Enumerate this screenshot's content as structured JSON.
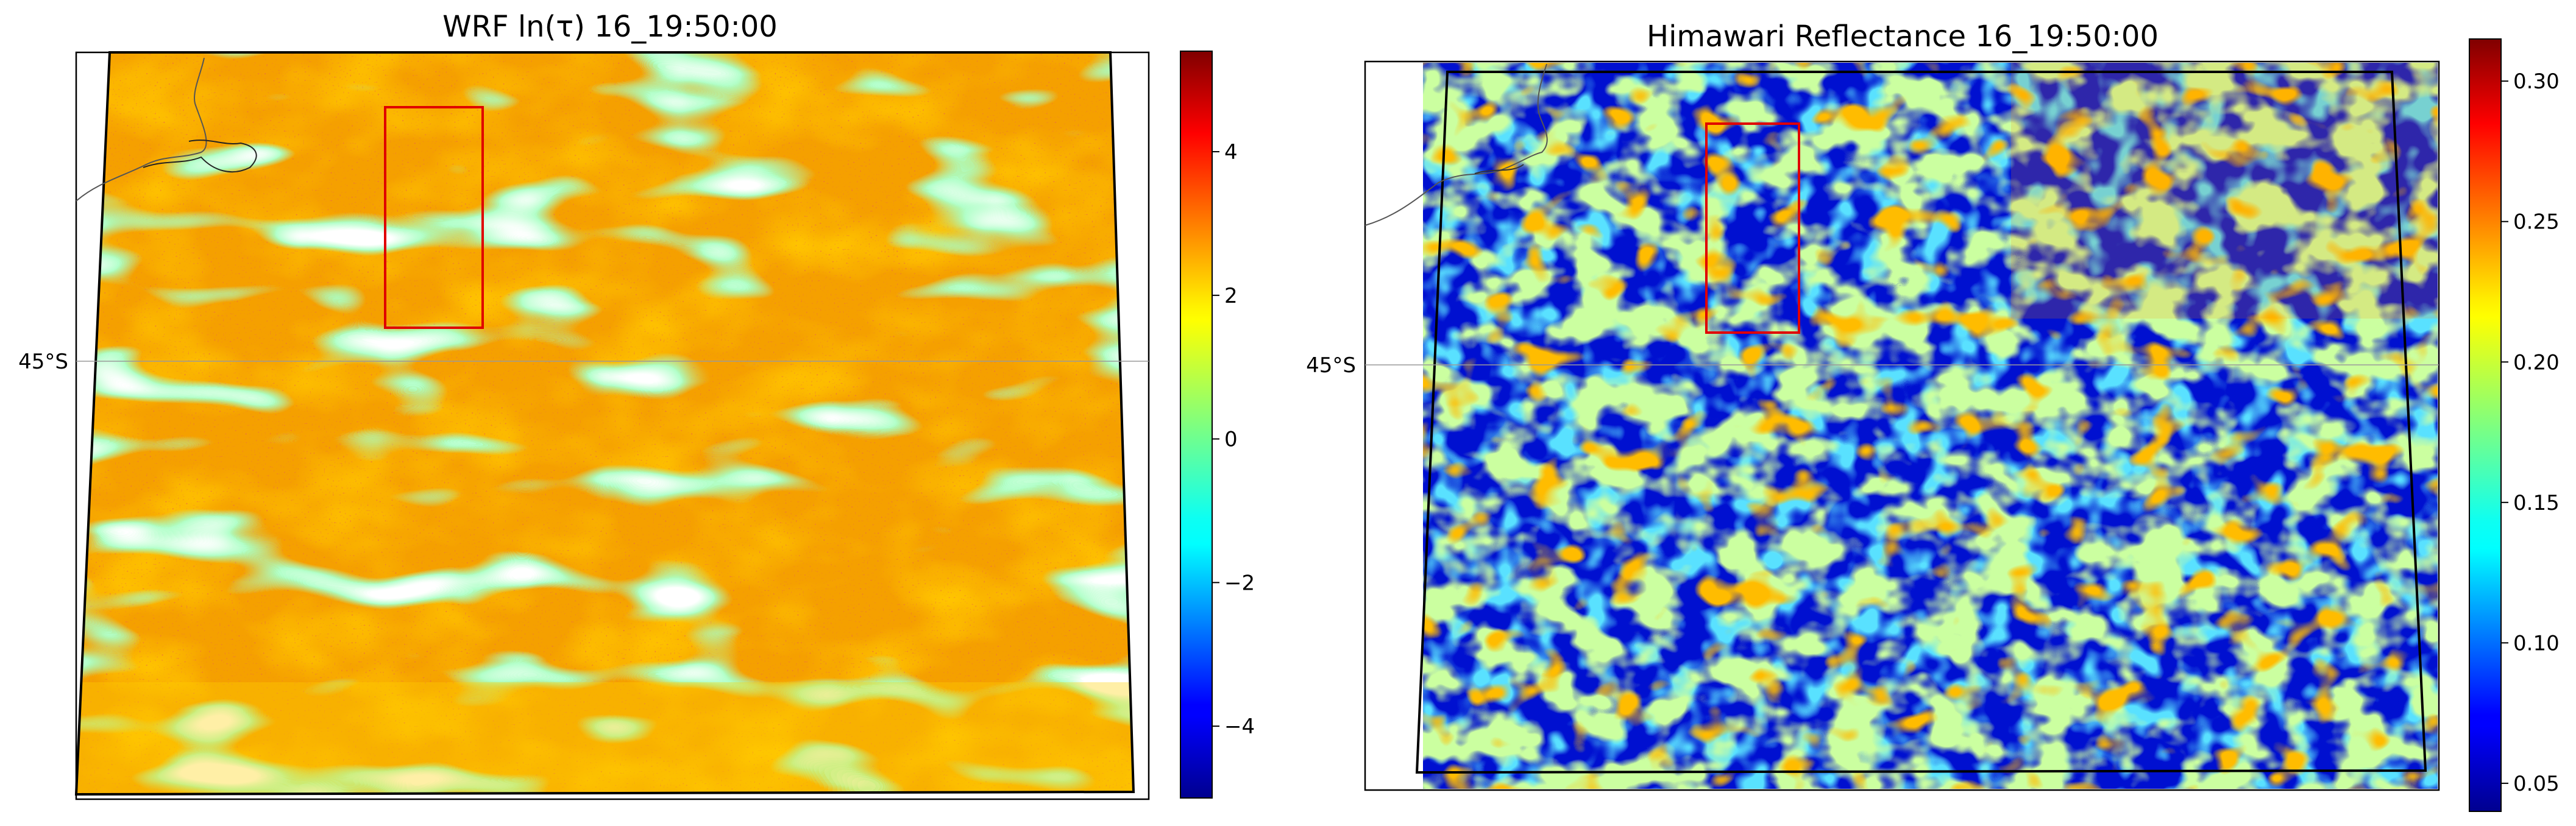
{
  "chart_data": [
    {
      "type": "heatmap",
      "title": "WRF ln(τ) 16_19:50:00",
      "latitude_label": "45°S",
      "colormap": "jet",
      "colorbar": {
        "range": [
          -5.0,
          5.4
        ],
        "ticks": [
          -4,
          -2,
          0,
          2,
          4
        ],
        "tick_labels": [
          "−4",
          "−2",
          "0",
          "2",
          "4"
        ]
      },
      "highlight_box_color": "#e00000",
      "missing_color": "#ffffff"
    },
    {
      "type": "heatmap",
      "title": "Himawari Reflectance 16_19:50:00",
      "latitude_label": "45°S",
      "colormap": "jet",
      "colorbar": {
        "range": [
          0.04,
          0.315
        ],
        "ticks": [
          0.05,
          0.1,
          0.15,
          0.2,
          0.25,
          0.3
        ],
        "tick_labels": [
          "0.05",
          "0.10",
          "0.15",
          "0.20",
          "0.25",
          "0.30"
        ]
      },
      "highlight_box_color": "#e00000",
      "domain_outline_color": "#000000"
    }
  ]
}
